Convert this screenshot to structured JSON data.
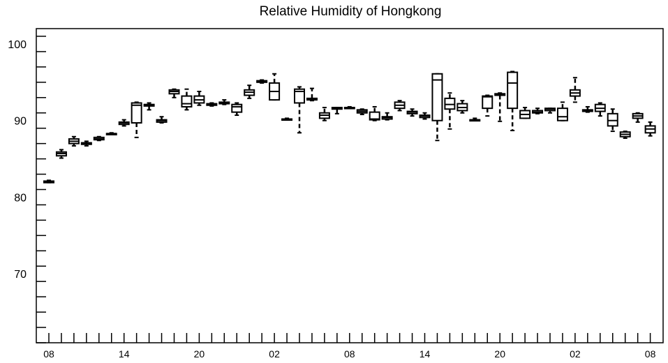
{
  "chart_data": {
    "type": "box",
    "title": "Relative Humidity of Hongkong",
    "xlabel": "",
    "ylabel": "",
    "ylim": [
      61,
      102
    ],
    "y_ticks": [
      70,
      80,
      90,
      100
    ],
    "x_tick_labels": [
      "08",
      "14",
      "20",
      "02",
      "08",
      "14",
      "20",
      "02",
      "08"
    ],
    "x_tick_label_slots": [
      0,
      6,
      12,
      18,
      24,
      30,
      36,
      42,
      48
    ],
    "slot_count": 49,
    "grid": false,
    "boxes": [
      {
        "slot": 0,
        "whisker_low": 81.9,
        "q1": 81.9,
        "median": 82.0,
        "q3": 82.1,
        "whisker_high": 82.2
      },
      {
        "slot": 1,
        "whisker_low": 85.1,
        "q1": 85.4,
        "median": 85.7,
        "q3": 85.9,
        "whisker_high": 86.2
      },
      {
        "slot": 2,
        "whisker_low": 86.7,
        "q1": 87.0,
        "median": 87.3,
        "q3": 87.6,
        "whisker_high": 87.9
      },
      {
        "slot": 3,
        "whisker_low": 86.7,
        "q1": 86.9,
        "median": 87.0,
        "q3": 87.1,
        "whisker_high": 87.3
      },
      {
        "slot": 4,
        "whisker_low": 87.4,
        "q1": 87.5,
        "median": 87.6,
        "q3": 87.8,
        "whisker_high": 87.9
      },
      {
        "slot": 5,
        "whisker_low": 88.2,
        "q1": 88.2,
        "median": 88.3,
        "q3": 88.3,
        "whisker_high": 88.4
      },
      {
        "slot": 6,
        "whisker_low": 89.3,
        "q1": 89.5,
        "median": 89.7,
        "q3": 89.8,
        "whisker_high": 90.1
      },
      {
        "slot": 7,
        "whisker_low": 87.8,
        "q1": 89.7,
        "median": 92.0,
        "q3": 92.3,
        "whisker_high": 92.4
      },
      {
        "slot": 8,
        "whisker_low": 91.4,
        "q1": 91.9,
        "median": 92.0,
        "q3": 92.1,
        "whisker_high": 92.3
      },
      {
        "slot": 9,
        "whisker_low": 89.7,
        "q1": 89.8,
        "median": 90.0,
        "q3": 90.1,
        "whisker_high": 90.5
      },
      {
        "slot": 10,
        "whisker_low": 93.0,
        "q1": 93.5,
        "median": 93.8,
        "q3": 94.0,
        "whisker_high": 94.1
      },
      {
        "slot": 11,
        "whisker_low": 91.4,
        "q1": 91.8,
        "median": 92.2,
        "q3": 93.2,
        "whisker_high": 94.1
      },
      {
        "slot": 12,
        "whisker_low": 92.0,
        "q1": 92.3,
        "median": 92.7,
        "q3": 93.2,
        "whisker_high": 93.8
      },
      {
        "slot": 13,
        "whisker_low": 91.9,
        "q1": 92.0,
        "median": 92.1,
        "q3": 92.2,
        "whisker_high": 92.3
      },
      {
        "slot": 14,
        "whisker_low": 92.1,
        "q1": 92.2,
        "median": 92.3,
        "q3": 92.4,
        "whisker_high": 92.7
      },
      {
        "slot": 15,
        "whisker_low": 90.7,
        "q1": 91.1,
        "median": 91.8,
        "q3": 92.1,
        "whisker_high": 92.3
      },
      {
        "slot": 16,
        "whisker_low": 92.9,
        "q1": 93.3,
        "median": 93.7,
        "q3": 94.0,
        "whisker_high": 94.6
      },
      {
        "slot": 17,
        "whisker_low": 94.9,
        "q1": 95.0,
        "median": 95.1,
        "q3": 95.2,
        "whisker_high": 95.3
      },
      {
        "slot": 18,
        "whisker_low": 92.7,
        "q1": 92.7,
        "median": 93.8,
        "q3": 94.9,
        "whisker_high": 96.1
      },
      {
        "slot": 19,
        "whisker_low": 90.1,
        "q1": 90.1,
        "median": 90.2,
        "q3": 90.2,
        "whisker_high": 90.3
      },
      {
        "slot": 20,
        "whisker_low": 88.4,
        "q1": 92.3,
        "median": 93.8,
        "q3": 94.1,
        "whisker_high": 94.4
      },
      {
        "slot": 21,
        "whisker_low": 92.6,
        "q1": 92.7,
        "median": 92.8,
        "q3": 92.9,
        "whisker_high": 94.2
      },
      {
        "slot": 22,
        "whisker_low": 90.0,
        "q1": 90.3,
        "median": 90.7,
        "q3": 91.0,
        "whisker_high": 91.7
      },
      {
        "slot": 23,
        "whisker_low": 90.9,
        "q1": 91.5,
        "median": 91.6,
        "q3": 91.7,
        "whisker_high": 91.7
      },
      {
        "slot": 24,
        "whisker_low": 91.6,
        "q1": 91.6,
        "median": 91.7,
        "q3": 91.7,
        "whisker_high": 91.8
      },
      {
        "slot": 25,
        "whisker_low": 90.8,
        "q1": 91.0,
        "median": 91.2,
        "q3": 91.4,
        "whisker_high": 91.5
      },
      {
        "slot": 26,
        "whisker_low": 90.0,
        "q1": 90.1,
        "median": 90.2,
        "q3": 91.1,
        "whisker_high": 91.8
      },
      {
        "slot": 27,
        "whisker_low": 90.1,
        "q1": 90.2,
        "median": 90.4,
        "q3": 90.5,
        "whisker_high": 91.0
      },
      {
        "slot": 28,
        "whisker_low": 91.3,
        "q1": 91.6,
        "median": 92.0,
        "q3": 92.4,
        "whisker_high": 92.6
      },
      {
        "slot": 29,
        "whisker_low": 90.6,
        "q1": 90.9,
        "median": 91.1,
        "q3": 91.2,
        "whisker_high": 91.5
      },
      {
        "slot": 30,
        "whisker_low": 90.2,
        "q1": 90.4,
        "median": 90.6,
        "q3": 90.7,
        "whisker_high": 91.0
      },
      {
        "slot": 31,
        "whisker_low": 87.4,
        "q1": 90.0,
        "median": 95.3,
        "q3": 96.1,
        "whisker_high": 96.1
      },
      {
        "slot": 32,
        "whisker_low": 88.9,
        "q1": 91.5,
        "median": 92.1,
        "q3": 92.9,
        "whisker_high": 93.6
      },
      {
        "slot": 33,
        "whisker_low": 91.0,
        "q1": 91.3,
        "median": 91.7,
        "q3": 92.2,
        "whisker_high": 92.6
      },
      {
        "slot": 34,
        "whisker_low": 90.0,
        "q1": 90.0,
        "median": 90.1,
        "q3": 90.1,
        "whisker_high": 90.3
      },
      {
        "slot": 35,
        "whisker_low": 90.6,
        "q1": 91.6,
        "median": 93.1,
        "q3": 93.2,
        "whisker_high": 93.3
      },
      {
        "slot": 36,
        "whisker_low": 89.9,
        "q1": 93.3,
        "median": 93.4,
        "q3": 93.5,
        "whisker_high": 93.6
      },
      {
        "slot": 37,
        "whisker_low": 88.7,
        "q1": 91.6,
        "median": 94.9,
        "q3": 96.3,
        "whisker_high": 96.4
      },
      {
        "slot": 38,
        "whisker_low": 90.3,
        "q1": 90.3,
        "median": 90.8,
        "q3": 91.3,
        "whisker_high": 91.7
      },
      {
        "slot": 39,
        "whisker_low": 90.9,
        "q1": 91.0,
        "median": 91.1,
        "q3": 91.3,
        "whisker_high": 91.6
      },
      {
        "slot": 40,
        "whisker_low": 91.0,
        "q1": 91.3,
        "median": 91.5,
        "q3": 91.6,
        "whisker_high": 91.6
      },
      {
        "slot": 41,
        "whisker_low": 90.0,
        "q1": 90.0,
        "median": 90.5,
        "q3": 91.6,
        "whisker_high": 92.4
      },
      {
        "slot": 42,
        "whisker_low": 92.4,
        "q1": 93.2,
        "median": 93.6,
        "q3": 94.0,
        "whisker_high": 95.6
      },
      {
        "slot": 43,
        "whisker_low": 91.1,
        "q1": 91.2,
        "median": 91.3,
        "q3": 91.4,
        "whisker_high": 91.8
      },
      {
        "slot": 44,
        "whisker_low": 90.6,
        "q1": 91.2,
        "median": 91.6,
        "q3": 92.1,
        "whisker_high": 92.3
      },
      {
        "slot": 45,
        "whisker_low": 88.6,
        "q1": 89.3,
        "median": 90.0,
        "q3": 90.9,
        "whisker_high": 91.5
      },
      {
        "slot": 46,
        "whisker_low": 87.7,
        "q1": 87.9,
        "median": 88.2,
        "q3": 88.5,
        "whisker_high": 88.6
      },
      {
        "slot": 47,
        "whisker_low": 89.8,
        "q1": 90.3,
        "median": 90.6,
        "q3": 90.9,
        "whisker_high": 91.0
      },
      {
        "slot": 48,
        "whisker_low": 88.0,
        "q1": 88.4,
        "median": 88.9,
        "q3": 89.3,
        "whisker_high": 89.8
      }
    ]
  }
}
